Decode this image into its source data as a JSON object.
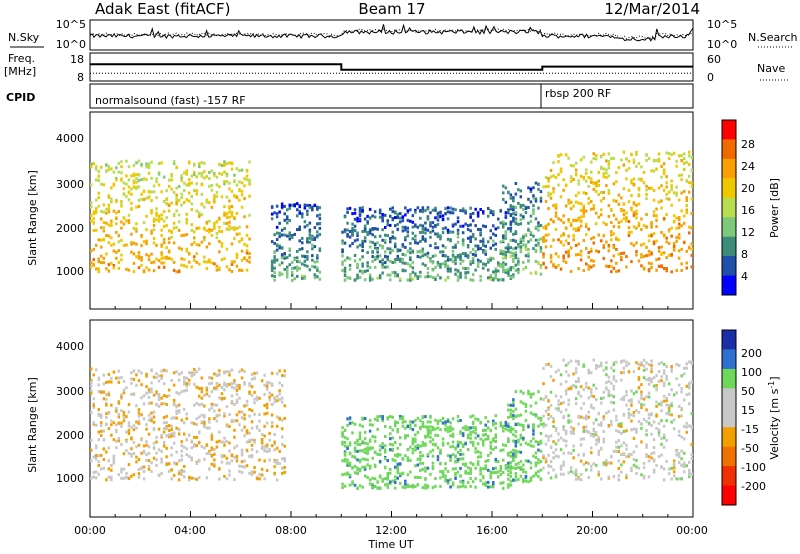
{
  "header": {
    "station": "Adak East (fitACF)",
    "beam": "Beam 17",
    "date": "12/Mar/2014"
  },
  "noise_panel": {
    "left_label": "N.Sky",
    "right_label": "N.Search",
    "left_ticks": [
      "10^5",
      "10^0"
    ],
    "right_ticks": [
      "10^5",
      "10^0"
    ]
  },
  "freq_panel": {
    "left_label_1": "Freq.",
    "left_label_2": "[MHz]",
    "right_label": "Nave",
    "left_ticks": [
      "18",
      "8"
    ],
    "right_ticks": [
      "60",
      "0"
    ],
    "freq_segments": [
      {
        "from": 0.0,
        "to": 10.0,
        "value": 14.5
      },
      {
        "from": 10.0,
        "to": 18.0,
        "value": 11.5
      },
      {
        "from": 18.0,
        "to": 24.0,
        "value": 13.2
      }
    ],
    "nave_level": 12
  },
  "cpid_panel": {
    "label": "CPID",
    "programs": [
      {
        "name": "normalsound (fast) -157 RF",
        "from": 0.0,
        "to": 18.0
      },
      {
        "name": "rbsp 200 RF",
        "from": 18.0,
        "to": 24.0
      }
    ]
  },
  "colors": {
    "power_scale": [
      "#0000ff",
      "#1f4fa8",
      "#3c8c7a",
      "#7ec87a",
      "#b8de4f",
      "#f0c800",
      "#f7a000",
      "#f06a00",
      "#ff0000"
    ],
    "velocity_scale": [
      "#1a2ea8",
      "#2f6fd0",
      "#6fd85a",
      "#c8c8c8",
      "#c8c8c8",
      "#f2a000",
      "#f07000",
      "#f03000",
      "#ff0000"
    ]
  },
  "chart_data": [
    {
      "type": "heatmap",
      "name": "Power",
      "ylabel": "Slant Range [km]",
      "yticks": [
        "1000",
        "2000",
        "3000",
        "4000"
      ],
      "ylim": [
        0,
        4600
      ],
      "xlim": [
        0,
        24
      ],
      "colorbar": {
        "label": "Power [dB]",
        "ticks": [
          "28",
          "24",
          "20",
          "16",
          "12",
          "8",
          "4"
        ],
        "range": [
          0,
          32
        ]
      },
      "scatter_regions": [
        {
          "from": 0.0,
          "to": 6.4,
          "range_min": 900,
          "range_max": 3500,
          "power": 20
        },
        {
          "from": 7.2,
          "to": 9.2,
          "range_min": 700,
          "range_max": 2500,
          "power": 7
        },
        {
          "from": 10.0,
          "to": 17.0,
          "range_min": 700,
          "range_max": 2400,
          "power": 7
        },
        {
          "from": 16.4,
          "to": 18.0,
          "range_min": 800,
          "range_max": 3000,
          "power": 9
        },
        {
          "from": 18.0,
          "to": 24.0,
          "range_min": 900,
          "range_max": 3700,
          "power": 22
        }
      ]
    },
    {
      "type": "heatmap",
      "name": "Velocity",
      "ylabel": "Slant Range [km]",
      "yticks": [
        "1000",
        "2000",
        "3000",
        "4000"
      ],
      "ylim": [
        0,
        4600
      ],
      "xlim": [
        0,
        24
      ],
      "xlabel": "Time UT",
      "xticks": [
        "00:00",
        "04:00",
        "08:00",
        "12:00",
        "16:00",
        "20:00",
        "00:00"
      ],
      "colorbar": {
        "label": "Velocity [m s^-1]",
        "ticks": [
          "200",
          "100",
          "50",
          "15",
          "-15",
          "-50",
          "-100",
          "-200"
        ],
        "range": [
          -250,
          250
        ]
      },
      "scatter_regions": [
        {
          "from": 0.0,
          "to": 7.8,
          "range_min": 900,
          "range_max": 3500,
          "velocity": -10
        },
        {
          "from": 10.0,
          "to": 17.0,
          "range_min": 700,
          "range_max": 2400,
          "velocity": 35
        },
        {
          "from": 16.6,
          "to": 18.0,
          "range_min": 800,
          "range_max": 3000,
          "velocity": 35
        },
        {
          "from": 18.0,
          "to": 24.0,
          "range_min": 900,
          "range_max": 3700,
          "velocity": 0
        }
      ]
    }
  ]
}
